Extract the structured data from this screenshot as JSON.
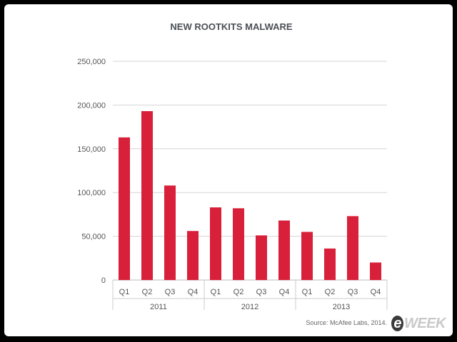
{
  "chart_data": {
    "type": "bar",
    "title": "NEW ROOTKITS MALWARE",
    "categories": [
      "Q1",
      "Q2",
      "Q3",
      "Q4",
      "Q1",
      "Q2",
      "Q3",
      "Q4",
      "Q1",
      "Q2",
      "Q3",
      "Q4"
    ],
    "groups": [
      {
        "label": "2011",
        "count": 4
      },
      {
        "label": "2012",
        "count": 4
      },
      {
        "label": "2013",
        "count": 4
      }
    ],
    "values": [
      163000,
      193000,
      108000,
      56000,
      83000,
      82000,
      51000,
      68000,
      55000,
      36000,
      73000,
      20000
    ],
    "ylim": [
      0,
      250000
    ],
    "yticks": [
      "0",
      "50,000",
      "100,000",
      "150,000",
      "200,000",
      "250,000"
    ],
    "grid": true,
    "bar_color": "#d8203a",
    "source": "Source: McAfee Labs, 2014."
  },
  "logo": {
    "prefix": "e",
    "text": "WEEK"
  }
}
